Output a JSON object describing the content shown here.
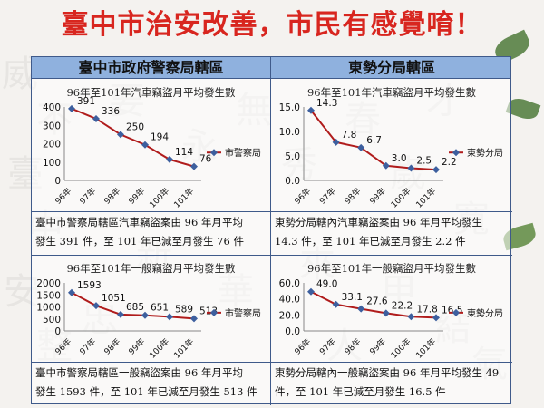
{
  "title": "臺中市治安改善，市民有感覺唷！",
  "headers": {
    "left": "臺中市政府警察局轄區",
    "right": "東勢分局轄區"
  },
  "background_chars": [
    "威",
    "不",
    "臺",
    "中",
    "安",
    "整",
    "要",
    "永",
    "無",
    "秀",
    "春",
    "歲",
    "才",
    "寬",
    "新",
    "華",
    "來",
    "甲",
    "結",
    "忠",
    "人",
    "氣"
  ],
  "captions": {
    "tl": [
      "臺中市警察局轄區汽車竊盜案由 96 年月平均",
      "發生 391 件，至 101 年已減至月發生 76 件"
    ],
    "tr": [
      "東勢分局轄內汽車竊盜案由 96 年月平均發生",
      "14.3 件，至 101 年已減至月發生 2.2 件"
    ],
    "bl": [
      "臺中市警察局轄區一般竊盜案由 96 年月平均",
      "發生 1593 件，至 101 年已減至月發生 513 件"
    ],
    "br": [
      "東勢分局轄內一般竊盜案由 96 年月平均發生 49",
      "件，至 101 年已減至月發生 16.5 件"
    ]
  },
  "colors": {
    "title": "#d8261f",
    "line": "#b01c1c",
    "marker": "#3d5f9e",
    "header": "#8fb1de"
  },
  "chart_data": [
    {
      "id": "tl",
      "type": "line",
      "title": "96年至101年汽車竊盜月平均發生數",
      "categories": [
        "96年",
        "97年",
        "98年",
        "99年",
        "100年",
        "101年"
      ],
      "series": [
        {
          "name": "市警察局",
          "values": [
            391,
            336,
            250,
            194,
            114,
            76
          ]
        }
      ],
      "ylim": [
        0,
        400
      ],
      "yticks": [
        0,
        100,
        200,
        300,
        400
      ],
      "data_labels": [
        "391",
        "336",
        "250",
        "194",
        "114",
        "76"
      ],
      "legend": "right",
      "grid": false
    },
    {
      "id": "tr",
      "type": "line",
      "title": "96年至101年汽車竊盜月平均發生數",
      "categories": [
        "96年",
        "97年",
        "98年",
        "99年",
        "100年",
        "101年"
      ],
      "series": [
        {
          "name": "東勢分局",
          "values": [
            14.3,
            7.8,
            6.7,
            3.0,
            2.5,
            2.2
          ]
        }
      ],
      "ylim": [
        0,
        15
      ],
      "yticks": [
        0.0,
        5.0,
        10.0,
        15.0
      ],
      "ytick_labels": [
        "0.0",
        "5.0",
        "10.0",
        "15.0"
      ],
      "data_labels": [
        "14.3",
        "7.8",
        "6.7",
        "3.0",
        "2.5",
        "2.2"
      ],
      "legend": "right",
      "grid": false
    },
    {
      "id": "bl",
      "type": "line",
      "title": "96年至101年一般竊盜月平均發生數",
      "categories": [
        "96年",
        "97年",
        "98年",
        "99年",
        "100年",
        "101年"
      ],
      "series": [
        {
          "name": "市警察局",
          "values": [
            1593,
            1051,
            685,
            651,
            589,
            513
          ]
        }
      ],
      "ylim": [
        0,
        2000
      ],
      "yticks": [
        0,
        500,
        1000,
        1500,
        2000
      ],
      "data_labels": [
        "1593",
        "1051",
        "685",
        "651",
        "589",
        "513"
      ],
      "legend": "right",
      "grid": false
    },
    {
      "id": "br",
      "type": "line",
      "title": "96年至101年一般竊盜月平均發生數",
      "categories": [
        "96年",
        "97年",
        "98年",
        "99年",
        "100年",
        "101年"
      ],
      "series": [
        {
          "name": "東勢分局",
          "values": [
            49.0,
            33.1,
            27.6,
            22.2,
            17.8,
            16.5
          ]
        }
      ],
      "ylim": [
        0,
        60
      ],
      "yticks": [
        0,
        20,
        40,
        60
      ],
      "ytick_labels": [
        "0.0",
        "20.0",
        "40.0",
        "60.0"
      ],
      "data_labels": [
        "49.0",
        "33.1",
        "27.6",
        "22.2",
        "17.8",
        "16.5"
      ],
      "legend": "right",
      "grid": false
    }
  ]
}
